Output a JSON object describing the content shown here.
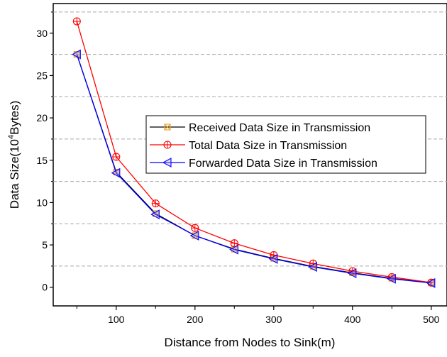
{
  "chart_data": {
    "type": "line",
    "xlabel": "Distance from Nodes to Sink(m)",
    "ylabel": {
      "prefix": "Data Size(10",
      "sup": "4",
      "suffix": "Bytes)"
    },
    "xlim": [
      20,
      520
    ],
    "ylim": [
      -2.2,
      33.5
    ],
    "xticks": [
      100,
      200,
      300,
      400,
      500
    ],
    "yticks": [
      0,
      5,
      10,
      15,
      20,
      25,
      30
    ],
    "grid": "dashed horizontal at y = 2.5, 7.5, 12.5, 17.5, 22.5, 27.5, 32.5",
    "legend_position": "center-right",
    "x": [
      50,
      100,
      150,
      200,
      250,
      300,
      350,
      400,
      450,
      500
    ],
    "series": [
      {
        "name": "Received Data Size in Transmission",
        "color": "#000000",
        "marker": "square-x",
        "marker_color": "#e8a020",
        "values": [
          27.5,
          13.6,
          8.7,
          6.1,
          4.5,
          3.4,
          2.45,
          1.7,
          1.05,
          0.5
        ]
      },
      {
        "name": "Total Data Size in Transmission",
        "color": "#ff0000",
        "marker": "circle-plus",
        "marker_color": "#ff0000",
        "values": [
          31.4,
          15.4,
          9.9,
          7.0,
          5.2,
          3.8,
          2.8,
          1.9,
          1.2,
          0.55
        ]
      },
      {
        "name": "Forwarded Data Size in Transmission",
        "color": "#0000ff",
        "marker": "triangle-left",
        "marker_color": "#0000ff",
        "values": [
          27.5,
          13.5,
          8.6,
          6.1,
          4.45,
          3.35,
          2.4,
          1.65,
          1.0,
          0.5
        ]
      }
    ]
  }
}
